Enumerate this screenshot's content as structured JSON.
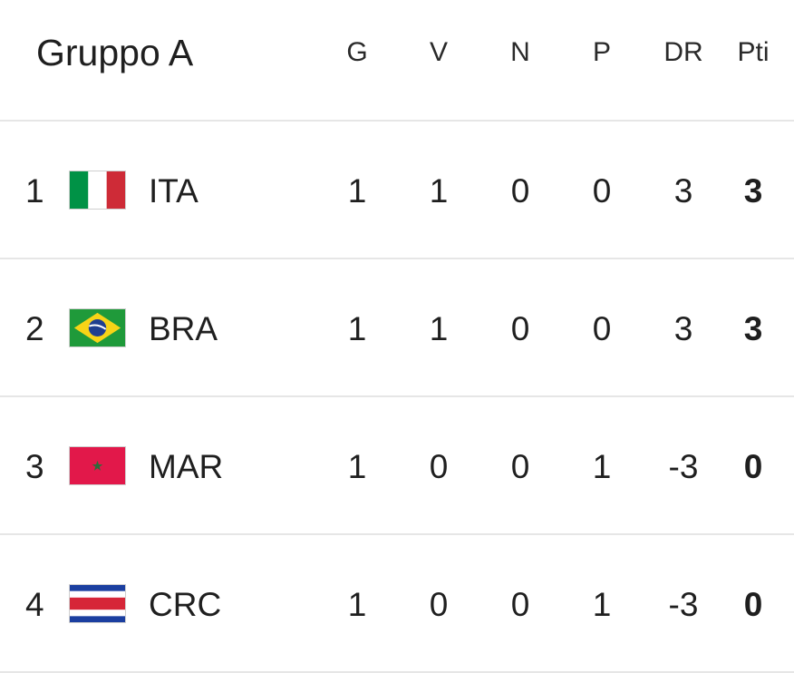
{
  "group_title": "Gruppo A",
  "columns": {
    "played": "G",
    "won": "V",
    "drawn": "N",
    "lost": "P",
    "goal_diff": "DR",
    "points": "Pti"
  },
  "rows": [
    {
      "position": "1",
      "flag": "italy-flag",
      "team": "ITA",
      "played": "1",
      "won": "1",
      "drawn": "0",
      "lost": "0",
      "goal_diff": "3",
      "points": "3"
    },
    {
      "position": "2",
      "flag": "brazil-flag",
      "team": "BRA",
      "played": "1",
      "won": "1",
      "drawn": "0",
      "lost": "0",
      "goal_diff": "3",
      "points": "3"
    },
    {
      "position": "3",
      "flag": "morocco-flag",
      "team": "MAR",
      "played": "1",
      "won": "0",
      "drawn": "0",
      "lost": "1",
      "goal_diff": "-3",
      "points": "0"
    },
    {
      "position": "4",
      "flag": "costa-rica-flag",
      "team": "CRC",
      "played": "1",
      "won": "0",
      "drawn": "0",
      "lost": "1",
      "goal_diff": "-3",
      "points": "0"
    }
  ],
  "colors": {
    "italy_green": "#009246",
    "italy_white": "#ffffff",
    "italy_red": "#ce2b37",
    "brazil_green": "#1f9a3a",
    "brazil_yellow": "#f7d417",
    "brazil_blue": "#1f3f8f",
    "morocco_red": "#e2184a",
    "morocco_star": "#2c6b3a",
    "costa_rica_blue": "#1b3fa0",
    "costa_rica_white": "#ffffff",
    "costa_rica_red": "#d62638",
    "divider": "#e6e6e6"
  }
}
